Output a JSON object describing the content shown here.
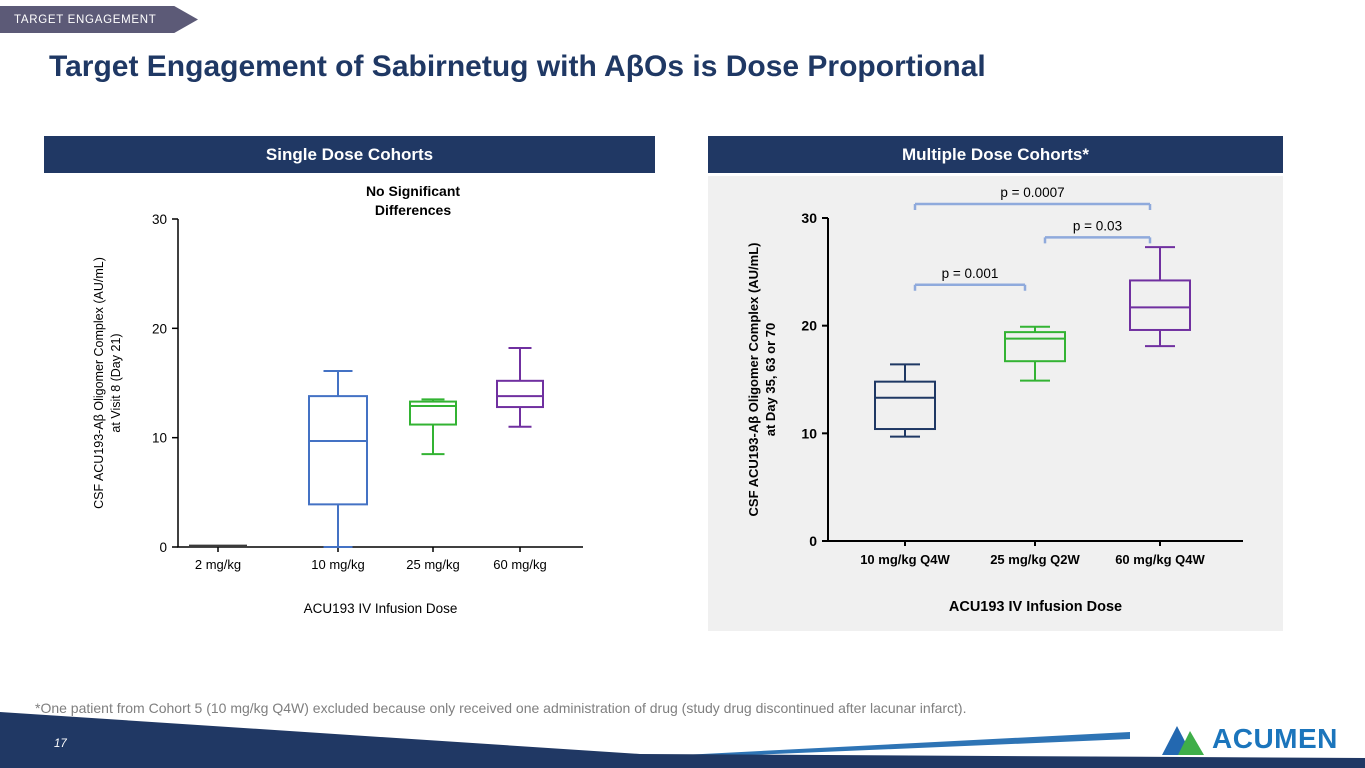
{
  "slide": {
    "tag": "TARGET ENGAGEMENT",
    "title": "Target Engagement of Sabirnetug with AβOs is Dose Proportional",
    "footnote": "*One patient from Cohort 5 (10 mg/kg Q4W) excluded because only received one administration of drug (study drug discontinued after lacunar infarct).",
    "page_number": "17",
    "logo_text": "ACUMEN"
  },
  "colors": {
    "navy": "#1F3864",
    "header_bar": "#203864",
    "tag_bg": "#5C5A77",
    "teal_annotation": "#156076",
    "pvalue_text": "#2E74B5",
    "bracket_line": "#8FAADC",
    "accent_stripe": "#2E74B5",
    "footnote_gray": "#7F7F7F",
    "logo_blue": "#1B75BC",
    "logo_green": "#3FAE49"
  },
  "chart_data": [
    {
      "type": "box",
      "panel": "Single Dose Cohorts",
      "annotation": [
        "No Significant",
        "Differences"
      ],
      "xlabel": "ACU193 IV Infusion Dose",
      "ylabel_line1": "CSF ACU193-Aβ Oligomer Complex (AU/mL)",
      "ylabel_line2": "at Visit 8 (Day 21)",
      "ylim": [
        0,
        30
      ],
      "yticks": [
        0,
        10,
        20,
        30
      ],
      "grid": false,
      "legend": "none",
      "categories": [
        "2 mg/kg",
        "10 mg/kg",
        "25 mg/kg",
        "60 mg/kg"
      ],
      "series": [
        {
          "label": "2 mg/kg",
          "color": "#3A3A3A",
          "low": 0.1,
          "q1": 0.1,
          "median": 0.1,
          "q3": 0.1,
          "high": 0.1
        },
        {
          "label": "10 mg/kg",
          "color": "#4472C4",
          "low": 0,
          "q1": 3.9,
          "median": 9.7,
          "q3": 13.8,
          "high": 16.1
        },
        {
          "label": "25 mg/kg",
          "color": "#33B333",
          "low": 8.5,
          "q1": 11.2,
          "median": 12.9,
          "q3": 13.3,
          "high": 13.5
        },
        {
          "label": "60 mg/kg",
          "color": "#7030A0",
          "low": 11.0,
          "q1": 12.8,
          "median": 13.8,
          "q3": 15.2,
          "high": 18.2
        }
      ]
    },
    {
      "type": "box",
      "panel": "Multiple Dose Cohorts*",
      "xlabel": "ACU193 IV Infusion Dose",
      "ylabel_line1": "CSF ACU193-Aβ Oligomer Complex (AU/mL)",
      "ylabel_line2": "at Day 35, 63 or 70",
      "ylim": [
        0,
        30
      ],
      "yticks": [
        0,
        10,
        20,
        30
      ],
      "grid": false,
      "legend": "none",
      "categories": [
        "10 mg/kg Q4W",
        "25 mg/kg Q2W",
        "60 mg/kg Q4W"
      ],
      "series": [
        {
          "label": "10 mg/kg Q4W",
          "color": "#1F3864",
          "low": 9.7,
          "q1": 10.4,
          "median": 13.3,
          "q3": 14.8,
          "high": 16.4
        },
        {
          "label": "25 mg/kg Q2W",
          "color": "#33B333",
          "low": 14.9,
          "q1": 16.7,
          "median": 18.8,
          "q3": 19.4,
          "high": 19.9
        },
        {
          "label": "60 mg/kg Q4W",
          "color": "#7030A0",
          "low": 18.1,
          "q1": 19.6,
          "median": 21.7,
          "q3": 24.2,
          "high": 27.3
        }
      ],
      "comparisons": [
        {
          "groups": [
            0,
            1
          ],
          "label": "p = 0.001",
          "y": 23.8
        },
        {
          "groups": [
            1,
            2
          ],
          "label": "p = 0.03",
          "y": 28.2
        },
        {
          "groups": [
            0,
            2
          ],
          "label": "p = 0.0007",
          "y": 31.3
        }
      ]
    }
  ]
}
